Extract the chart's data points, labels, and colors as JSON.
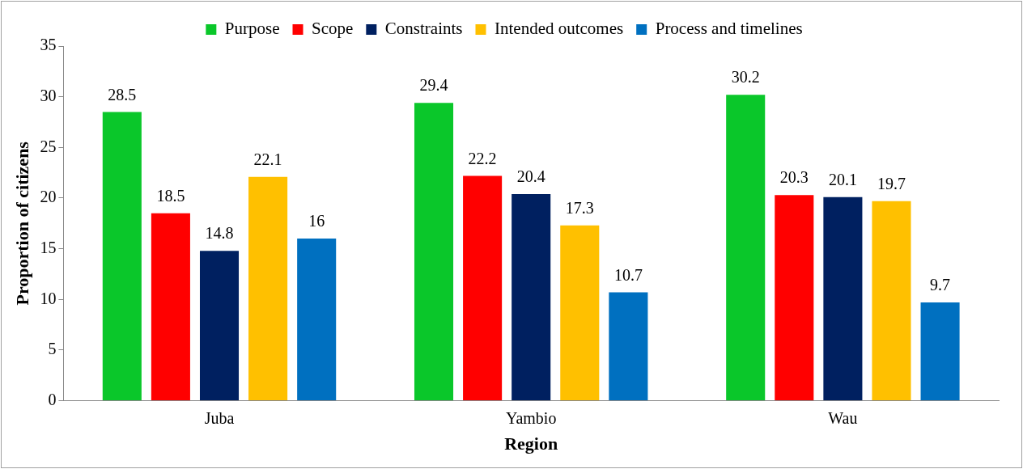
{
  "chart_data": {
    "type": "bar",
    "xlabel": "Region",
    "ylabel": "Proportion of citizens",
    "categories": [
      "Juba",
      "Yambio",
      "Wau"
    ],
    "series": [
      {
        "name": "Purpose",
        "color": "#0ac72a",
        "values": [
          28.5,
          29.4,
          30.2
        ]
      },
      {
        "name": "Scope",
        "color": "#ff0000",
        "values": [
          18.5,
          22.2,
          20.3
        ]
      },
      {
        "name": "Constraints",
        "color": "#002060",
        "values": [
          14.8,
          20.4,
          20.1
        ]
      },
      {
        "name": "Intended outcomes",
        "color": "#ffc000",
        "values": [
          22.1,
          17.3,
          19.7
        ]
      },
      {
        "name": "Process and timelines",
        "color": "#0070c0",
        "values": [
          16,
          10.7,
          9.7
        ]
      }
    ],
    "ylim": [
      0,
      35
    ],
    "yticks": [
      0,
      5,
      10,
      15,
      20,
      25,
      30,
      35
    ],
    "grid": false,
    "legend": "top",
    "data_labels": true
  }
}
